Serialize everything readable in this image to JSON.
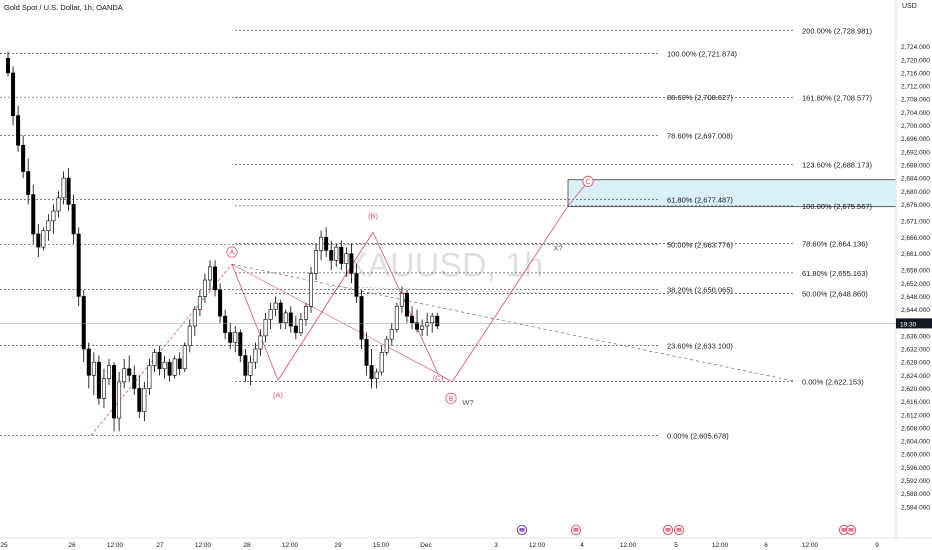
{
  "header": {
    "title": "Gold Spot / U.S. Dollar, 1h, OANDA",
    "currency": "USD"
  },
  "colors": {
    "up": "#ffffff",
    "down": "#000000",
    "wick": "#000000",
    "fib": "#555555",
    "wave": "#e0526b",
    "box_fill": "#d7f1f5",
    "box_stroke": "#222222",
    "price_tag": "#131722",
    "watermark": "#c8c8c8"
  },
  "price_tag": "19:30",
  "watermark": "XAUUSD, 1h",
  "chart_data": {
    "type": "candlestick",
    "ylim": [
      2581.5,
      2731.5
    ],
    "y_ticks": [
      "2,584.000",
      "2,588.000",
      "2,592.000",
      "2,596.000",
      "2,600.000",
      "2,604.000",
      "2,608.000",
      "2,612.000",
      "2,616.000",
      "2,620.000",
      "2,624.000",
      "2,628.000",
      "2,632.000",
      "2,636.000",
      "2,640.000",
      "2,644.000",
      "2,648.000",
      "2,652.000",
      "2,656.000",
      "2,661.000",
      "2,666.000",
      "2,671.000",
      "2,676.000",
      "2,680.000",
      "2,684.000",
      "2,688.000",
      "2,692.000",
      "2,696.000",
      "2,700.000",
      "2,704.000",
      "2,708.000",
      "2,712.000",
      "2,716.000",
      "2,720.000",
      "2,724.000"
    ],
    "x_ticks": [
      "25",
      "26",
      "12:00",
      "27",
      "12:00",
      "28",
      "12:00",
      "29",
      "15:00",
      "Dec",
      "3",
      "12:00",
      "4",
      "12:00",
      "5",
      "12:00",
      "6",
      "12:00",
      "9"
    ],
    "fib_left": [
      {
        "label": "100.00% (2,721.874)",
        "price": 2721.874
      },
      {
        "label": "88.60% (2,708.627)",
        "price": 2708.627
      },
      {
        "label": "78.60% (2,697.008)",
        "price": 2697.008
      },
      {
        "label": "61.80% (2,677.487)",
        "price": 2677.487
      },
      {
        "label": "50.00% (2,663.776)",
        "price": 2663.776
      },
      {
        "label": "38.20% (2,650.065)",
        "price": 2650.065
      },
      {
        "label": "23.60% (2,633.100)",
        "price": 2633.1
      },
      {
        "label": "0.00% (2,605.678)",
        "price": 2605.678
      }
    ],
    "fib_right": [
      {
        "label": "200.00% (2,728.981)",
        "price": 2728.981
      },
      {
        "label": "161.80% (2,708.577)",
        "price": 2708.577
      },
      {
        "label": "123.60% (2,688.173)",
        "price": 2688.173
      },
      {
        "label": "100.00% (2,675.567)",
        "price": 2675.567
      },
      {
        "label": "78.60% (2,664.136)",
        "price": 2664.136
      },
      {
        "label": "61.80% (2,655.163)",
        "price": 2655.163
      },
      {
        "label": "50.00% (2,648.860)",
        "price": 2648.86
      },
      {
        "label": "0.00% (2,622.153)",
        "price": 2622.153
      }
    ],
    "wave_labels": [
      "A",
      "(A)",
      "(B)",
      "(C)",
      "B",
      "C",
      "W?",
      "X?"
    ],
    "current_price": 2639.8,
    "candles": [
      [
        2720.5,
        2722.5,
        2715,
        2716
      ],
      [
        2716,
        2718,
        2700,
        2703
      ],
      [
        2703,
        2706,
        2692,
        2694
      ],
      [
        2694,
        2697,
        2684,
        2686
      ],
      [
        2686,
        2690,
        2676,
        2679
      ],
      [
        2679,
        2682,
        2664,
        2667
      ],
      [
        2667,
        2670,
        2660,
        2663
      ],
      [
        2663,
        2669,
        2662,
        2668
      ],
      [
        2668,
        2673,
        2665,
        2671
      ],
      [
        2671,
        2676,
        2667,
        2674
      ],
      [
        2674,
        2680,
        2672,
        2678
      ],
      [
        2678,
        2686,
        2676,
        2684
      ],
      [
        2684,
        2687,
        2674,
        2676
      ],
      [
        2676,
        2679,
        2664,
        2667
      ],
      [
        2667,
        2669,
        2645,
        2648
      ],
      [
        2648,
        2650,
        2628,
        2632
      ],
      [
        2632,
        2634,
        2620,
        2624
      ],
      [
        2624,
        2631,
        2618,
        2628
      ],
      [
        2628,
        2630,
        2615,
        2617
      ],
      [
        2617,
        2626,
        2614,
        2623
      ],
      [
        2623,
        2629,
        2621,
        2627
      ],
      [
        2627,
        2628,
        2607,
        2611
      ],
      [
        2611,
        2625,
        2607,
        2622
      ],
      [
        2622,
        2629,
        2620,
        2626
      ],
      [
        2626,
        2630,
        2622,
        2624
      ],
      [
        2624,
        2627,
        2618,
        2620
      ],
      [
        2620,
        2624,
        2611,
        2613
      ],
      [
        2613,
        2622,
        2610,
        2620
      ],
      [
        2620,
        2629,
        2618,
        2627
      ],
      [
        2627,
        2632,
        2625,
        2631
      ],
      [
        2631,
        2633,
        2624,
        2626
      ],
      [
        2626,
        2630,
        2623,
        2628
      ],
      [
        2628,
        2629,
        2622,
        2624
      ],
      [
        2624,
        2630,
        2623,
        2629
      ],
      [
        2629,
        2631,
        2624,
        2626
      ],
      [
        2626,
        2634,
        2625,
        2633
      ],
      [
        2633,
        2641,
        2631,
        2639
      ],
      [
        2639,
        2645,
        2636,
        2644
      ],
      [
        2644,
        2650,
        2642,
        2648
      ],
      [
        2648,
        2655,
        2646,
        2653
      ],
      [
        2653,
        2659,
        2650,
        2657
      ],
      [
        2657,
        2659,
        2648,
        2650
      ],
      [
        2650,
        2652,
        2640,
        2642
      ],
      [
        2642,
        2644,
        2635,
        2637
      ],
      [
        2637,
        2640,
        2632,
        2634
      ],
      [
        2634,
        2639,
        2631,
        2637
      ],
      [
        2637,
        2638,
        2628,
        2630
      ],
      [
        2630,
        2632,
        2622,
        2624
      ],
      [
        2624,
        2630,
        2621,
        2628
      ],
      [
        2628,
        2634,
        2626,
        2632
      ],
      [
        2632,
        2638,
        2630,
        2636
      ],
      [
        2636,
        2643,
        2634,
        2641
      ],
      [
        2641,
        2646,
        2638,
        2644
      ],
      [
        2644,
        2648,
        2642,
        2646
      ],
      [
        2646,
        2647,
        2638,
        2640
      ],
      [
        2640,
        2644,
        2638,
        2643
      ],
      [
        2643,
        2645,
        2637,
        2639
      ],
      [
        2639,
        2642,
        2635,
        2637
      ],
      [
        2637,
        2643,
        2636,
        2641
      ],
      [
        2641,
        2646,
        2639,
        2645
      ],
      [
        2645,
        2657,
        2643,
        2655
      ],
      [
        2655,
        2664,
        2653,
        2662
      ],
      [
        2662,
        2668,
        2659,
        2666
      ],
      [
        2666,
        2669,
        2660,
        2662
      ],
      [
        2662,
        2665,
        2656,
        2659
      ],
      [
        2659,
        2664,
        2657,
        2663
      ],
      [
        2663,
        2665,
        2656,
        2658
      ],
      [
        2658,
        2663,
        2654,
        2661
      ],
      [
        2661,
        2664,
        2652,
        2655
      ],
      [
        2655,
        2658,
        2646,
        2648
      ],
      [
        2648,
        2650,
        2632,
        2635
      ],
      [
        2635,
        2637,
        2624,
        2627
      ],
      [
        2627,
        2632,
        2620,
        2623
      ],
      [
        2623,
        2626,
        2620,
        2625
      ],
      [
        2625,
        2633,
        2624,
        2631
      ],
      [
        2631,
        2636,
        2630,
        2635
      ],
      [
        2635,
        2640,
        2633,
        2638
      ],
      [
        2638,
        2646,
        2637,
        2645
      ],
      [
        2645,
        2651,
        2643,
        2649
      ],
      [
        2649,
        2650,
        2640,
        2642
      ],
      [
        2642,
        2645,
        2638,
        2640
      ],
      [
        2640,
        2644,
        2637,
        2638
      ],
      [
        2638,
        2641,
        2636,
        2639
      ],
      [
        2639,
        2643,
        2636,
        2640
      ],
      [
        2640,
        2643,
        2637,
        2642
      ],
      [
        2642,
        2643,
        2638,
        2639
      ]
    ]
  }
}
